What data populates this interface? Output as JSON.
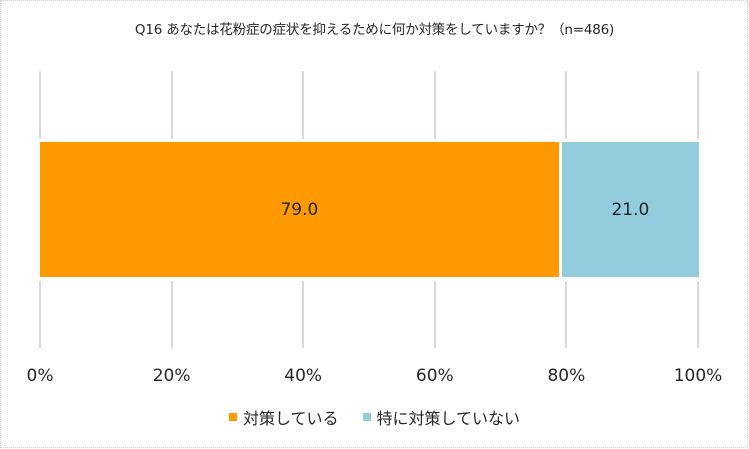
{
  "chart_data": {
    "type": "bar",
    "orientation": "horizontal-stacked-100",
    "title": "Q16 あなたは花粉症の症状を抑えるために何か対策をしていますか？（n=486)",
    "categories": [
      ""
    ],
    "series": [
      {
        "name": "対策している",
        "values": [
          79.0
        ],
        "color": "#FF9900",
        "label": "79.0"
      },
      {
        "name": "特に対策していない",
        "values": [
          21.0
        ],
        "color": "#93CDDD",
        "label": "21.0"
      }
    ],
    "xlabel": "",
    "ylabel": "",
    "xlim": [
      0,
      100
    ],
    "x_ticks": [
      "0%",
      "20%",
      "40%",
      "60%",
      "80%",
      "100%"
    ],
    "grid": true,
    "legend_position": "bottom"
  },
  "colors": {
    "series_1": "#FF9900",
    "series_2": "#93CDDD",
    "gridline": "#D9D9D9",
    "text": "#262626"
  }
}
